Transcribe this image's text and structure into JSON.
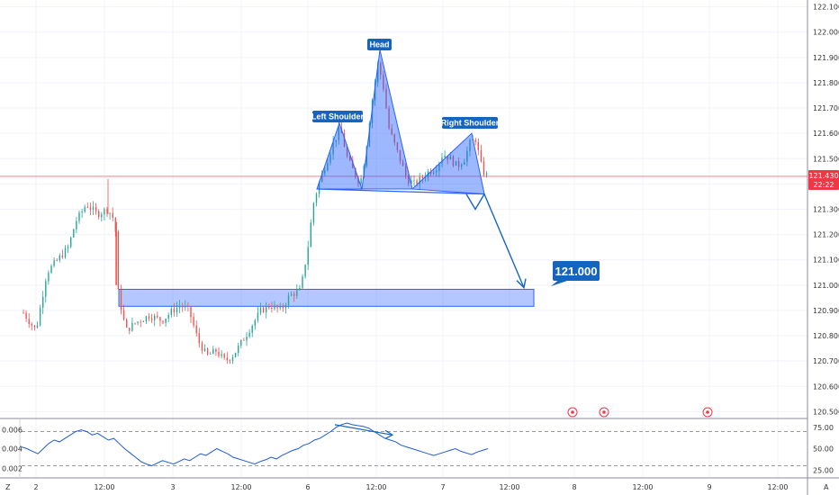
{
  "chart_data": [
    {
      "type": "candlestick",
      "y_axis": {
        "ticks": [
          "122.100",
          "122.000",
          "121.900",
          "121.800",
          "121.700",
          "121.600",
          "121.500",
          "121.400",
          "121.300",
          "121.200",
          "121.100",
          "121.000",
          "120.900",
          "120.800",
          "120.700",
          "120.600",
          "120.500"
        ],
        "range": [
          120.48,
          122.12
        ]
      },
      "x_axis": {
        "ticks": [
          "2",
          "12:00",
          "3",
          "12:00",
          "6",
          "12:00",
          "7",
          "12:00",
          "8",
          "12:00",
          "9",
          "12:00"
        ]
      },
      "current_price": {
        "value": "121.430",
        "countdown": "22:22"
      },
      "annotations": {
        "left_shoulder": "Left Shoulder",
        "head": "Head",
        "right_shoulder": "Right Shoulder",
        "target": "121.000"
      },
      "support_zone": {
        "low": 120.92,
        "high": 120.98
      },
      "neckline": [
        121.38,
        121.36
      ],
      "forecast_path": [
        121.36,
        121.3,
        121.36,
        120.99
      ],
      "pattern_points": {
        "left_shoulder": [
          121.38,
          121.64,
          121.38
        ],
        "head": [
          121.38,
          121.93,
          121.38
        ],
        "right_shoulder": [
          121.38,
          121.6,
          121.36
        ]
      },
      "colors": {
        "up": "#26a69a",
        "down": "#ef5350",
        "pattern": "#2962ff",
        "price_line": "#f23645"
      }
    },
    {
      "type": "line",
      "y_axis_left": {
        "ticks": [
          "0.006",
          "0.004",
          "0.002"
        ]
      },
      "y_axis_right": {
        "ticks": [
          "75.00",
          "50.00",
          "25.00"
        ]
      },
      "levels": [
        70,
        30
      ],
      "values": [
        52,
        50,
        47,
        44,
        50,
        56,
        60,
        58,
        62,
        66,
        70,
        72,
        70,
        66,
        68,
        64,
        60,
        62,
        56,
        50,
        45,
        40,
        35,
        32,
        30,
        33,
        36,
        34,
        32,
        35,
        38,
        36,
        40,
        44,
        42,
        46,
        50,
        47,
        44,
        40,
        38,
        36,
        34,
        32,
        35,
        37,
        40,
        38,
        42,
        45,
        48,
        50,
        54,
        56,
        60,
        62,
        66,
        70,
        75,
        78,
        80,
        78,
        77,
        76,
        74,
        70,
        66,
        62,
        60,
        58,
        54,
        52,
        50,
        48,
        46,
        44,
        42,
        44,
        46,
        48,
        50,
        47,
        45,
        43,
        46,
        48,
        50
      ]
    }
  ],
  "footer": {
    "left_label": "Z",
    "right_label": "A"
  }
}
